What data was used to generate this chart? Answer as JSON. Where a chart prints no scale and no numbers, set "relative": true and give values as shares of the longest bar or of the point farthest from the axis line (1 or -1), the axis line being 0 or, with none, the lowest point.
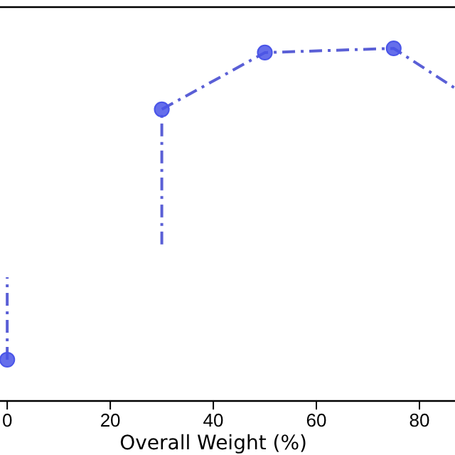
{
  "chart_data": {
    "type": "line",
    "relative": true,
    "xlabel": "Overall Weight (%)",
    "xlim": [
      -1.4,
      86.9
    ],
    "xticks": [
      0,
      20,
      40,
      60,
      80
    ],
    "line_style": "dashdot",
    "grid": false,
    "series": [
      {
        "color": "#5a5fd6",
        "marker": "none",
        "x": [
          0,
          0
        ],
        "values": [
          0.117,
          0.351
        ]
      },
      {
        "color": "#5a5fd6",
        "marker": "none",
        "x": [
          30,
          30,
          50,
          75,
          86.9
        ],
        "values": [
          0.444,
          0.827,
          0.988,
          1,
          0.887
        ]
      },
      {
        "type": "scatter",
        "color": "#4a55e8",
        "marker": "circle",
        "x": [
          0,
          30,
          50,
          75
        ],
        "values": [
          0.117,
          0.827,
          0.988,
          1
        ]
      }
    ]
  }
}
